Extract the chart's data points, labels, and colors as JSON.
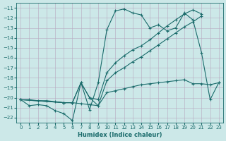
{
  "xlabel": "Humidex (Indice chaleur)",
  "bg_color": "#cce8e8",
  "line_color": "#1a6b6b",
  "grid_color": "#b8a8c0",
  "xlim": [
    -0.5,
    23.5
  ],
  "ylim": [
    -22.5,
    -10.5
  ],
  "yticks": [
    -22,
    -21,
    -20,
    -19,
    -18,
    -17,
    -16,
    -15,
    -14,
    -13,
    -12,
    -11
  ],
  "xticks": [
    0,
    1,
    2,
    3,
    4,
    5,
    6,
    7,
    8,
    9,
    10,
    11,
    12,
    13,
    14,
    15,
    16,
    17,
    18,
    19,
    20,
    21,
    22,
    23
  ],
  "series1_x": [
    0,
    1,
    2,
    3,
    4,
    5,
    6,
    7,
    8,
    9,
    10,
    11,
    12,
    13,
    14,
    15,
    16,
    17,
    18,
    19,
    20,
    21,
    22,
    23
  ],
  "series1_y": [
    -20.2,
    -20.8,
    -20.7,
    -20.8,
    -21.3,
    -21.6,
    -22.3,
    -18.5,
    -21.2,
    -18.5,
    -13.2,
    -11.3,
    -11.1,
    -11.5,
    -11.7,
    -13.0,
    -12.7,
    -13.3,
    -13.0,
    -11.5,
    -12.2,
    -15.5,
    -20.2,
    -18.5
  ],
  "series2_x": [
    0,
    1,
    2,
    3,
    4,
    5,
    6,
    7,
    8,
    9,
    10,
    11,
    12,
    13,
    14,
    15,
    16,
    17,
    18,
    19,
    20,
    21,
    22,
    23
  ],
  "series2_y": [
    -20.2,
    -20.2,
    -20.3,
    -20.3,
    -20.4,
    -20.5,
    -20.5,
    -20.6,
    -20.7,
    -20.8,
    -19.5,
    -19.3,
    -19.1,
    -18.9,
    -18.7,
    -18.6,
    -18.5,
    -18.4,
    -18.3,
    -18.2,
    -18.6,
    -18.6,
    -18.7,
    -18.5
  ],
  "series3_x": [
    0,
    5,
    6,
    7,
    8,
    9,
    10,
    11,
    12,
    13,
    14,
    15,
    16,
    17,
    18,
    19,
    20,
    21
  ],
  "series3_y": [
    -20.2,
    -20.5,
    -20.5,
    -18.5,
    -20.0,
    -20.2,
    -17.5,
    -16.5,
    -15.8,
    -15.2,
    -14.8,
    -14.2,
    -13.5,
    -12.8,
    -12.2,
    -11.6,
    -11.2,
    -11.6
  ],
  "series4_x": [
    0,
    5,
    6,
    7,
    8,
    9,
    10,
    11,
    12,
    13,
    14,
    15,
    16,
    17,
    18,
    19,
    20,
    21
  ],
  "series4_y": [
    -20.2,
    -20.5,
    -20.5,
    -18.5,
    -20.0,
    -20.8,
    -18.3,
    -17.5,
    -17.0,
    -16.4,
    -15.9,
    -15.3,
    -14.7,
    -14.1,
    -13.5,
    -12.9,
    -12.4,
    -11.8
  ]
}
